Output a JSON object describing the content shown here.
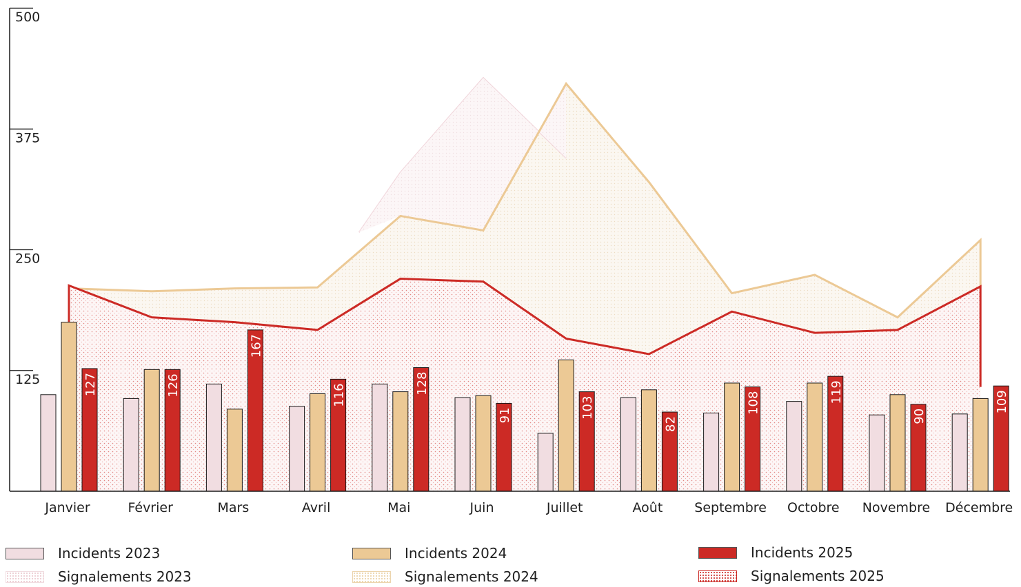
{
  "chart_data": {
    "type": "bar",
    "categories": [
      "Janvier",
      "Février",
      "Mars",
      "Avril",
      "Mai",
      "Juin",
      "Juillet",
      "Août",
      "Septembre",
      "Octobre",
      "Novembre",
      "Décembre"
    ],
    "ylim": [
      0,
      500
    ],
    "yticks": [
      "500",
      "375",
      "250",
      "125"
    ],
    "grid": false,
    "legend_position": "bottom",
    "series": [
      {
        "name": "Incidents 2023",
        "kind": "bar",
        "color": "#f1dde1",
        "values": [
          100,
          96,
          111,
          88,
          111,
          97,
          60,
          97,
          81,
          93,
          79,
          80
        ]
      },
      {
        "name": "Incidents 2024",
        "kind": "bar",
        "color": "#ecc995",
        "values": [
          175,
          126,
          85,
          101,
          103,
          99,
          136,
          105,
          112,
          112,
          100,
          96
        ]
      },
      {
        "name": "Incidents 2025",
        "kind": "bar",
        "color": "#cc2a25",
        "values": [
          127,
          126,
          167,
          116,
          128,
          91,
          103,
          82,
          108,
          119,
          90,
          109
        ],
        "labels": [
          "127",
          "126",
          "167",
          "116",
          "128",
          "91",
          "103",
          "82",
          "108",
          "119",
          "90",
          "109"
        ]
      },
      {
        "name": "Signalements 2023",
        "kind": "area",
        "color": "#f1dde1",
        "values": [
          null,
          null,
          null,
          null,
          330,
          428,
          345,
          null,
          null,
          null,
          null,
          null
        ]
      },
      {
        "name": "Signalements 2024",
        "kind": "area",
        "color": "#ecc995",
        "values": [
          210,
          207,
          210,
          211,
          285,
          270,
          422,
          320,
          205,
          224,
          180,
          260
        ]
      },
      {
        "name": "Signalements 2025",
        "kind": "area",
        "color": "#cc2a25",
        "values": [
          213,
          180,
          175,
          167,
          220,
          217,
          158,
          142,
          186,
          164,
          167,
          212
        ]
      }
    ]
  },
  "legend": [
    {
      "label": "Incidents 2023",
      "swatch": "solid",
      "color": "#f1dde1",
      "border": "#555555"
    },
    {
      "label": "Incidents 2024",
      "swatch": "solid",
      "color": "#ecc995",
      "border": "#555555"
    },
    {
      "label": "Incidents 2025",
      "swatch": "solid",
      "color": "#cc2a25",
      "border": "#555555"
    },
    {
      "label": "Signalements 2023",
      "swatch": "dotted23"
    },
    {
      "label": "Signalements 2024",
      "swatch": "dotted24"
    },
    {
      "label": "Signalements 2025",
      "swatch": "dotted25"
    }
  ]
}
